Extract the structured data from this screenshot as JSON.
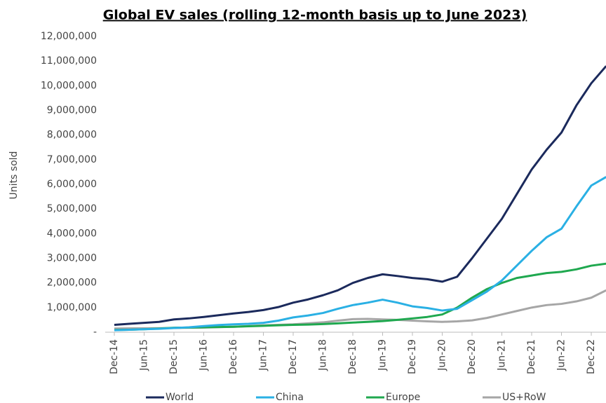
{
  "chart_data": {
    "type": "line",
    "title": "Global EV sales (rolling 12-month basis up to June 2023)",
    "y_label": "Units sold",
    "categories": [
      "Dec-14",
      null,
      "Jun-15",
      null,
      "Dec-15",
      null,
      "Jun-16",
      null,
      "Dec-16",
      null,
      "Jun-17",
      null,
      "Dec-17",
      null,
      "Jun-18",
      null,
      "Dec-18",
      null,
      "Jun-19",
      null,
      "Dec-19",
      null,
      "Jun-20",
      null,
      "Dec-20",
      null,
      "Jun-21",
      null,
      "Dec-21",
      null,
      "Jun-22",
      null,
      "Dec-22",
      null
    ],
    "series": [
      {
        "name": "World",
        "color": "#1b2a5c",
        "values": [
          300000,
          340000,
          380000,
          420000,
          520000,
          560000,
          620000,
          690000,
          760000,
          820000,
          900000,
          1020000,
          1200000,
          1330000,
          1500000,
          1700000,
          2000000,
          2200000,
          2350000,
          2280000,
          2200000,
          2150000,
          2050000,
          2250000,
          3000000,
          3800000,
          4600000,
          5600000,
          6600000,
          7400000,
          8100000,
          9200000,
          10100000,
          10800000
        ]
      },
      {
        "name": "China",
        "color": "#2ab0e4",
        "values": [
          80000,
          100000,
          120000,
          140000,
          170000,
          200000,
          250000,
          290000,
          320000,
          340000,
          380000,
          470000,
          600000,
          680000,
          780000,
          950000,
          1100000,
          1200000,
          1320000,
          1200000,
          1050000,
          980000,
          880000,
          950000,
          1300000,
          1650000,
          2100000,
          2700000,
          3300000,
          3850000,
          4200000,
          5100000,
          5950000,
          6300000
        ]
      },
      {
        "name": "Europe",
        "color": "#1fa84f",
        "values": [
          90000,
          100000,
          120000,
          150000,
          180000,
          190000,
          200000,
          210000,
          220000,
          240000,
          260000,
          280000,
          300000,
          310000,
          330000,
          360000,
          390000,
          420000,
          450000,
          500000,
          560000,
          620000,
          720000,
          1000000,
          1400000,
          1750000,
          2000000,
          2200000,
          2300000,
          2400000,
          2450000,
          2550000,
          2700000,
          2780000
        ]
      },
      {
        "name": "US+RoW",
        "color": "#a6a6a6",
        "values": [
          150000,
          155000,
          160000,
          165000,
          170000,
          180000,
          190000,
          205000,
          220000,
          250000,
          280000,
          300000,
          320000,
          360000,
          400000,
          470000,
          530000,
          540000,
          520000,
          500000,
          470000,
          440000,
          420000,
          440000,
          480000,
          580000,
          720000,
          860000,
          1000000,
          1100000,
          1150000,
          1250000,
          1400000,
          1700000
        ]
      }
    ],
    "ylim": [
      0,
      12000000
    ],
    "yticks": [
      {
        "value": 0,
        "label": "-"
      },
      {
        "value": 1000000,
        "label": "1,000,000"
      },
      {
        "value": 2000000,
        "label": "2,000,000"
      },
      {
        "value": 3000000,
        "label": "3,000,000"
      },
      {
        "value": 4000000,
        "label": "4,000,000"
      },
      {
        "value": 5000000,
        "label": "5,000,000"
      },
      {
        "value": 6000000,
        "label": "6,000,000"
      },
      {
        "value": 7000000,
        "label": "7,000,000"
      },
      {
        "value": 8000000,
        "label": "8,000,000"
      },
      {
        "value": 9000000,
        "label": "9,000,000"
      },
      {
        "value": 10000000,
        "label": "10,000,000"
      },
      {
        "value": 11000000,
        "label": "11,000,000"
      },
      {
        "value": 12000000,
        "label": "12,000,000"
      }
    ],
    "grid": false,
    "legend": "bottom"
  }
}
